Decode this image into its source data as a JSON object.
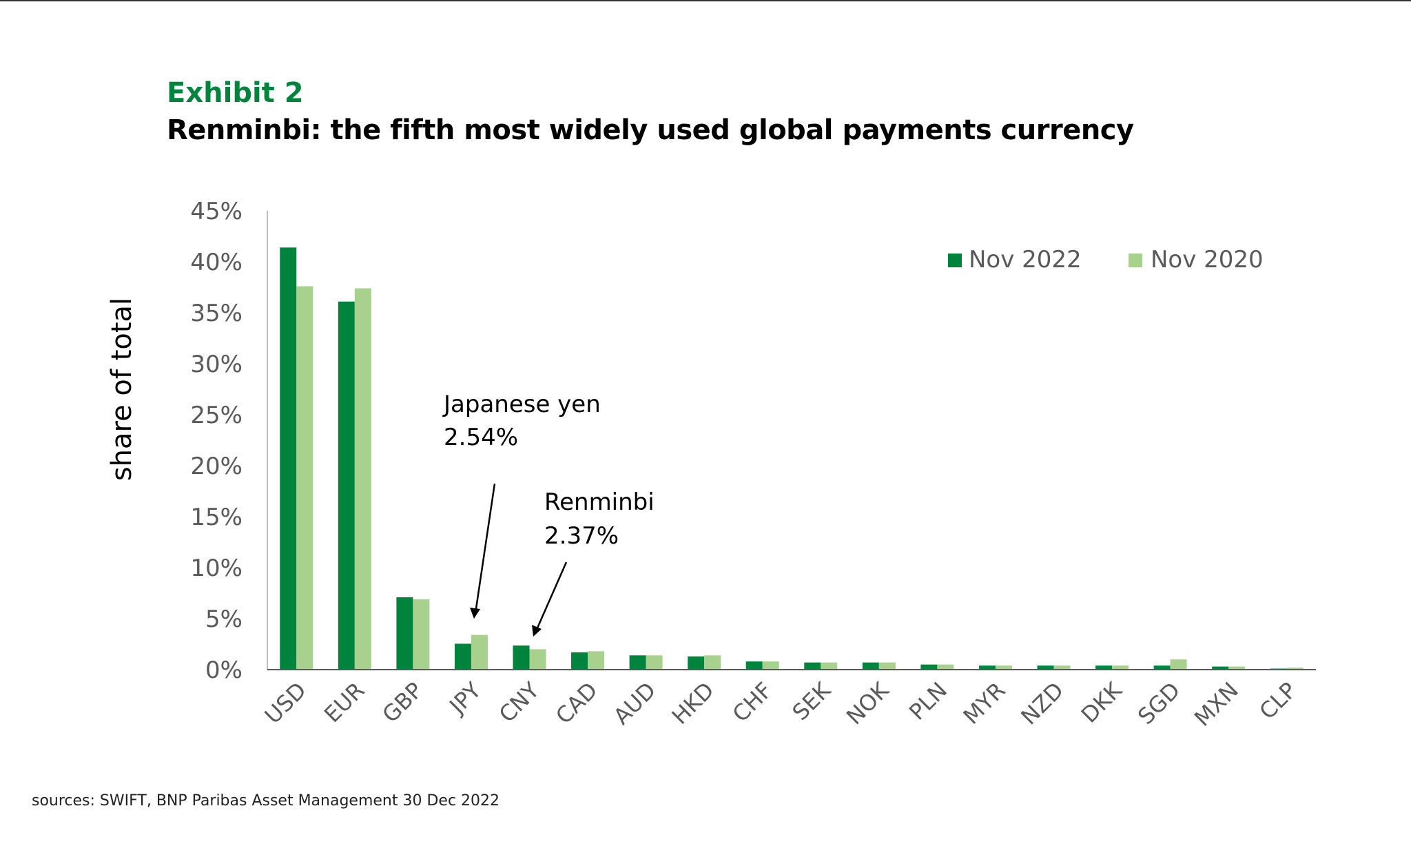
{
  "header": {
    "exhibit": "Exhibit 2",
    "title": "Renminbi: the fifth most widely used global payments currency"
  },
  "footer": {
    "source": "sources: SWIFT, BNP Paribas Asset Management  30 Dec 2022"
  },
  "colors": {
    "series_2022": "#00843d",
    "series_2020": "#a9d18e",
    "axis": "#595959",
    "exhibit": "#00843d"
  },
  "chart_data": {
    "type": "bar",
    "title": "Renminbi: the fifth most widely used global payments currency",
    "xlabel": "",
    "ylabel": "share of total",
    "ylim": [
      0,
      45
    ],
    "yticks": [
      "0%",
      "5%",
      "10%",
      "15%",
      "20%",
      "25%",
      "30%",
      "35%",
      "40%",
      "45%"
    ],
    "grid": false,
    "legend": "top-right",
    "categories": [
      "USD",
      "EUR",
      "GBP",
      "JPY",
      "CNY",
      "CAD",
      "AUD",
      "HKD",
      "CHF",
      "SEK",
      "NOK",
      "PLN",
      "MYR",
      "NZD",
      "DKK",
      "SGD",
      "MXN",
      "CLP"
    ],
    "series": [
      {
        "name": "Nov 2022",
        "values": [
          41.4,
          36.1,
          7.1,
          2.54,
          2.37,
          1.7,
          1.4,
          1.3,
          0.8,
          0.7,
          0.7,
          0.5,
          0.4,
          0.4,
          0.4,
          0.4,
          0.3,
          0.1
        ]
      },
      {
        "name": "Nov 2020",
        "values": [
          37.6,
          37.4,
          6.9,
          3.4,
          2.0,
          1.8,
          1.4,
          1.4,
          0.8,
          0.7,
          0.7,
          0.5,
          0.4,
          0.4,
          0.4,
          1.0,
          0.3,
          0.2
        ]
      }
    ],
    "annotations": [
      {
        "category": "JPY",
        "lines": [
          "Japanese yen",
          "2.54%"
        ]
      },
      {
        "category": "CNY",
        "lines": [
          "Renminbi",
          "2.37%"
        ]
      }
    ]
  }
}
